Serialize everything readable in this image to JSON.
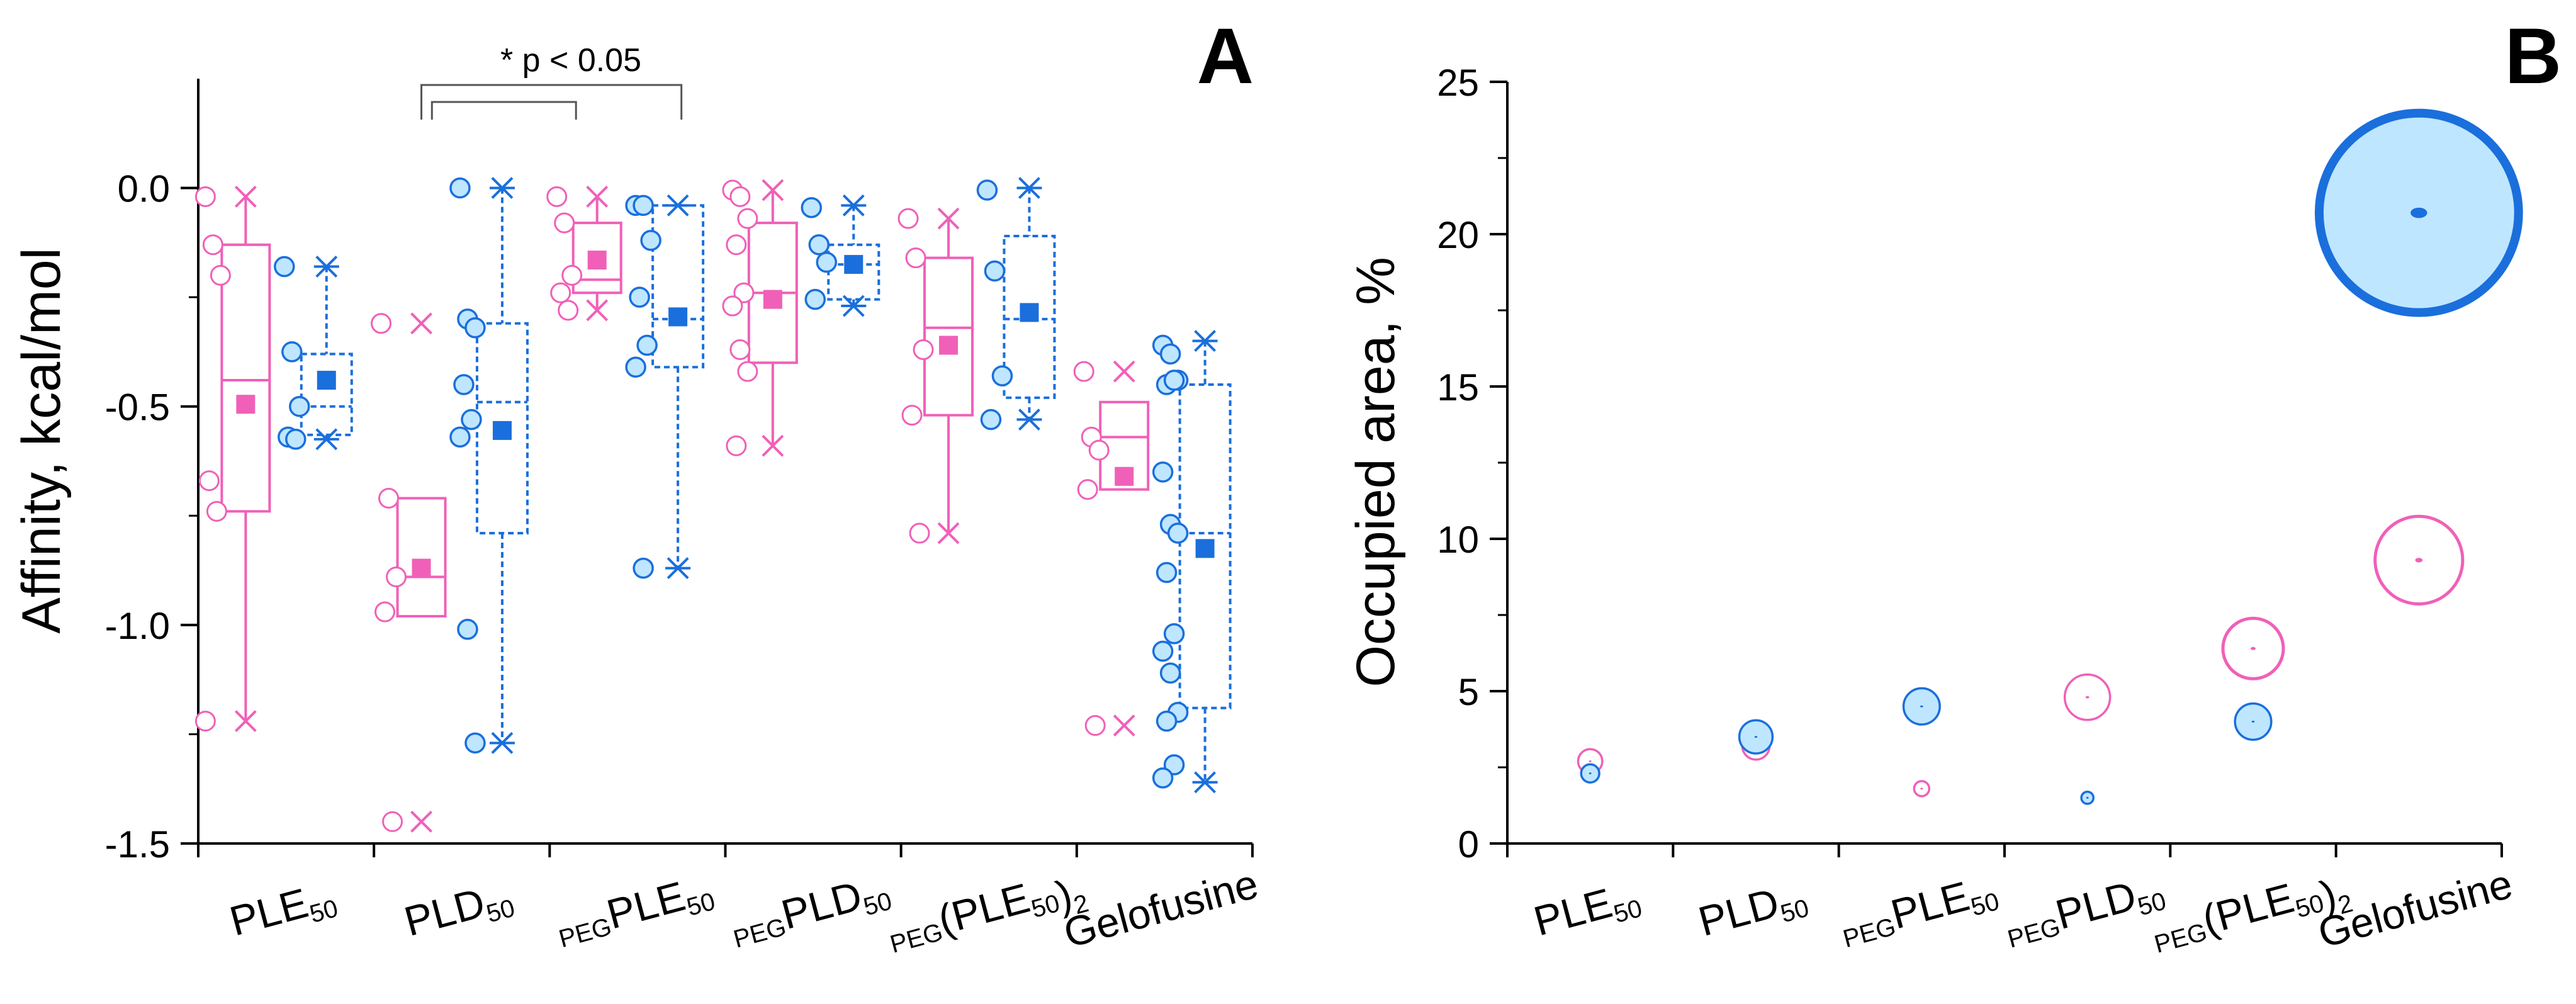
{
  "panels": {
    "a": {
      "label": "A",
      "ylabel": "Affinity, kcal/mol",
      "significance": "* p < 0.05"
    },
    "b": {
      "label": "B",
      "ylabel": "Occupied area, %"
    }
  },
  "colors": {
    "pink": "#f060b8",
    "pink_fill": "#ffffff",
    "blue": "#1a6fdc",
    "blue_fill": "#bfe6ff"
  },
  "categories": [
    {
      "prefix": "",
      "base": "PLE",
      "sub": "50",
      "tail": "",
      "tailsub": ""
    },
    {
      "prefix": "",
      "base": "PLD",
      "sub": "50",
      "tail": "",
      "tailsub": ""
    },
    {
      "prefix": "PEG",
      "base": "PLE",
      "sub": "50",
      "tail": "",
      "tailsub": ""
    },
    {
      "prefix": "PEG",
      "base": "PLD",
      "sub": "50",
      "tail": "",
      "tailsub": ""
    },
    {
      "prefix": "PEG",
      "base": "(PLE",
      "sub": "50",
      "tail": ")",
      "tailsub": "2"
    },
    {
      "prefix": "",
      "base": "Gelofusine",
      "sub": "",
      "tail": "",
      "tailsub": ""
    }
  ],
  "chart_data": [
    {
      "type": "box",
      "ylabel": "Affinity, kcal/mol",
      "ylim": [
        -1.5,
        0.25
      ],
      "yticks": [
        0.0,
        -0.5,
        -1.0,
        -1.5
      ],
      "ytick_labels": [
        "0.0",
        "-0.5",
        "-1.0",
        "-1.5"
      ],
      "annotations": [
        {
          "text": "* p < 0.05",
          "between": [
            [
              1,
              2
            ],
            [
              1,
              3
            ]
          ]
        }
      ],
      "boxes": [
        {
          "cat": 0,
          "series": "pink",
          "q1": -0.74,
          "median": -0.44,
          "q3": -0.13,
          "whisker_low": -1.22,
          "whisker_high": -0.02,
          "mean": -0.495,
          "min": -1.22,
          "max": -0.02,
          "points": [
            -0.02,
            -0.13,
            -0.2,
            -0.67,
            -0.74,
            -1.22
          ]
        },
        {
          "cat": 0,
          "series": "blue",
          "q1": -0.565,
          "median": -0.5,
          "q3": -0.38,
          "whisker_low": -0.575,
          "whisker_high": -0.18,
          "mean": -0.44,
          "min": -0.575,
          "max": -0.18,
          "points": [
            -0.18,
            -0.375,
            -0.5,
            -0.57,
            -0.575
          ]
        },
        {
          "cat": 1,
          "series": "pink",
          "q1": -0.98,
          "median": -0.89,
          "q3": -0.71,
          "whisker_low": -0.98,
          "whisker_high": -0.71,
          "mean": -0.87,
          "min": -1.45,
          "max": -0.31,
          "points": [
            -0.31,
            -0.71,
            -0.89,
            -0.97,
            -1.45
          ]
        },
        {
          "cat": 1,
          "series": "blue",
          "q1": -0.79,
          "median": -0.49,
          "q3": -0.31,
          "whisker_low": -1.27,
          "whisker_high": 0.0,
          "mean": -0.555,
          "min": -1.27,
          "max": 0.0,
          "points": [
            0.0,
            -0.3,
            -0.32,
            -0.45,
            -0.53,
            -0.57,
            -1.01,
            -1.27
          ]
        },
        {
          "cat": 2,
          "series": "pink",
          "q1": -0.24,
          "median": -0.21,
          "q3": -0.08,
          "whisker_low": -0.28,
          "whisker_high": -0.02,
          "mean": -0.165,
          "min": -0.28,
          "max": -0.02,
          "points": [
            -0.02,
            -0.08,
            -0.2,
            -0.24,
            -0.28
          ]
        },
        {
          "cat": 2,
          "series": "blue",
          "q1": -0.41,
          "median": -0.3,
          "q3": -0.04,
          "whisker_low": -0.87,
          "whisker_high": -0.04,
          "mean": -0.295,
          "min": -0.87,
          "max": -0.04,
          "points": [
            -0.04,
            -0.04,
            -0.12,
            -0.25,
            -0.36,
            -0.41,
            -0.87
          ]
        },
        {
          "cat": 3,
          "series": "pink",
          "q1": -0.4,
          "median": -0.24,
          "q3": -0.08,
          "whisker_low": -0.59,
          "whisker_high": -0.005,
          "mean": -0.255,
          "min": -0.59,
          "max": -0.005,
          "points": [
            -0.005,
            -0.02,
            -0.07,
            -0.13,
            -0.24,
            -0.27,
            -0.37,
            -0.42,
            -0.59
          ]
        },
        {
          "cat": 3,
          "series": "blue",
          "q1": -0.255,
          "median": -0.175,
          "q3": -0.13,
          "whisker_low": -0.27,
          "whisker_high": -0.04,
          "mean": -0.175,
          "min": -0.27,
          "max": -0.04,
          "points": [
            -0.045,
            -0.13,
            -0.17,
            -0.255
          ]
        },
        {
          "cat": 4,
          "series": "pink",
          "q1": -0.52,
          "median": -0.32,
          "q3": -0.16,
          "whisker_low": -0.79,
          "whisker_high": -0.07,
          "mean": -0.36,
          "min": -0.79,
          "max": -0.07,
          "points": [
            -0.07,
            -0.16,
            -0.37,
            -0.52,
            -0.79
          ]
        },
        {
          "cat": 4,
          "series": "blue",
          "q1": -0.48,
          "median": -0.3,
          "q3": -0.11,
          "whisker_low": -0.53,
          "whisker_high": 0.0,
          "mean": -0.285,
          "min": -0.53,
          "max": 0.0,
          "points": [
            -0.005,
            -0.19,
            -0.43,
            -0.53
          ]
        },
        {
          "cat": 5,
          "series": "pink",
          "q1": -0.69,
          "median": -0.57,
          "q3": -0.49,
          "whisker_low": -0.69,
          "whisker_high": -0.49,
          "mean": -0.66,
          "min": -1.23,
          "max": -0.42,
          "points": [
            -0.42,
            -0.57,
            -0.6,
            -0.69,
            -1.23
          ]
        },
        {
          "cat": 5,
          "series": "blue",
          "q1": -1.19,
          "median": -0.79,
          "q3": -0.45,
          "whisker_low": -1.36,
          "whisker_high": -0.35,
          "mean": -0.825,
          "min": -1.36,
          "max": -0.35,
          "points": [
            -0.36,
            -0.38,
            -0.44,
            -0.45,
            -0.44,
            -0.65,
            -0.77,
            -0.79,
            -0.88,
            -1.02,
            -1.06,
            -1.11,
            -1.2,
            -1.22,
            -1.32,
            -1.35
          ]
        }
      ]
    },
    {
      "type": "bubble",
      "ylabel": "Occupied area, %",
      "ylim": [
        0,
        25
      ],
      "yticks": [
        0,
        5,
        10,
        15,
        20,
        25
      ],
      "ytick_labels": [
        "0",
        "5",
        "10",
        "15",
        "20",
        "25"
      ],
      "bubbles": [
        {
          "cat": 0,
          "series": "pink",
          "y": 2.7,
          "size": 0.4
        },
        {
          "cat": 0,
          "series": "blue",
          "y": 2.3,
          "size": 0.3
        },
        {
          "cat": 1,
          "series": "pink",
          "y": 3.2,
          "size": 0.45
        },
        {
          "cat": 1,
          "series": "blue",
          "y": 3.5,
          "size": 0.55
        },
        {
          "cat": 2,
          "series": "pink",
          "y": 1.8,
          "size": 0.25
        },
        {
          "cat": 2,
          "series": "blue",
          "y": 4.5,
          "size": 0.6
        },
        {
          "cat": 3,
          "series": "pink",
          "y": 4.8,
          "size": 0.75
        },
        {
          "cat": 3,
          "series": "blue",
          "y": 1.5,
          "size": 0.2
        },
        {
          "cat": 4,
          "series": "pink",
          "y": 6.4,
          "size": 1.0
        },
        {
          "cat": 4,
          "series": "blue",
          "y": 4.0,
          "size": 0.6
        },
        {
          "cat": 5,
          "series": "pink",
          "y": 9.3,
          "size": 1.45
        },
        {
          "cat": 5,
          "series": "blue",
          "y": 20.7,
          "size": 3.3
        }
      ]
    }
  ]
}
